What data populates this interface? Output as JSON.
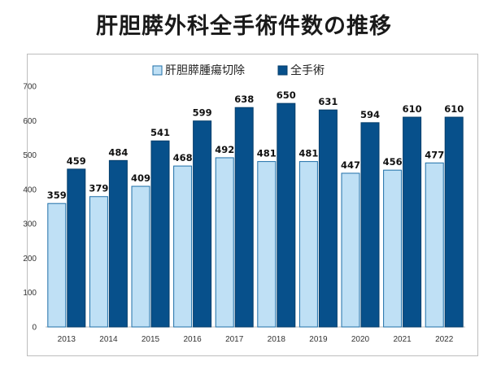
{
  "chart_data": {
    "type": "bar",
    "title": "肝胆膵外科全手術件数の推移",
    "categories": [
      "2013",
      "2014",
      "2015",
      "2016",
      "2017",
      "2018",
      "2019",
      "2020",
      "2021",
      "2022"
    ],
    "series": [
      {
        "name": "肝胆膵腫瘍切除",
        "color": "#bfe0f5",
        "stroke": "#1f6fa8",
        "values": [
          359,
          379,
          409,
          468,
          492,
          481,
          481,
          447,
          456,
          477
        ]
      },
      {
        "name": "全手術",
        "color": "#07508b",
        "stroke": "#053e6b",
        "values": [
          459,
          484,
          541,
          599,
          638,
          650,
          631,
          594,
          610,
          610
        ]
      }
    ],
    "ylim": [
      0,
      700
    ],
    "yticks": [
      0,
      100,
      200,
      300,
      400,
      500,
      600,
      700
    ],
    "xlabel": "",
    "ylabel": "",
    "grid": false,
    "legend_position": "top"
  }
}
